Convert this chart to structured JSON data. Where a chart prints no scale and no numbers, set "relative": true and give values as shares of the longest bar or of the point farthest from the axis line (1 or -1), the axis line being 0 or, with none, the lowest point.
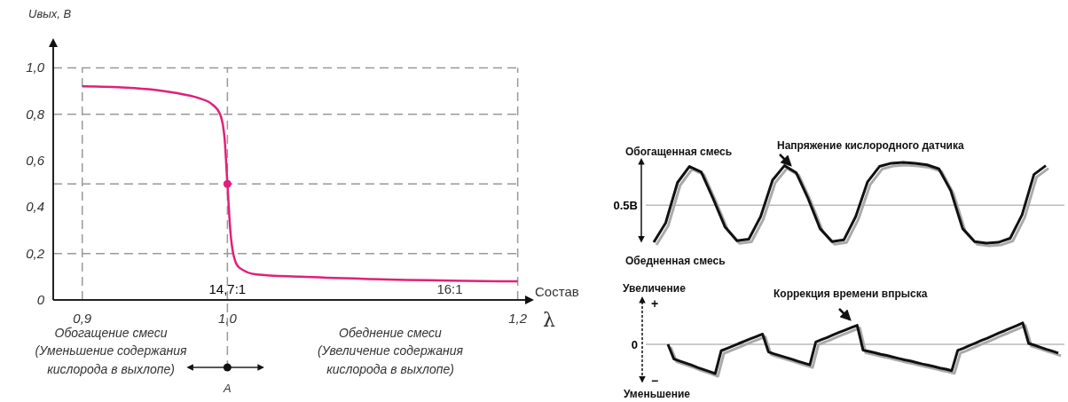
{
  "chart_data": [
    {
      "type": "line",
      "xlabel": "λ",
      "ylabel": "Uвых, В",
      "xlim": [
        0.88,
        1.21
      ],
      "ylim": [
        0,
        1.12
      ],
      "xticks": [
        {
          "value": 0.9,
          "label": "0,9"
        },
        {
          "value": 1.0,
          "label": "1,0"
        },
        {
          "value": 1.2,
          "label": "1,2"
        }
      ],
      "yticks": [
        0,
        {
          "value": 0.2,
          "label": "0,2"
        },
        {
          "value": 0.4,
          "label": "0,4"
        },
        {
          "value": 0.6,
          "label": "0,6"
        },
        {
          "value": 0.8,
          "label": "0,8"
        },
        {
          "value": 1.0,
          "label": "1,0"
        }
      ],
      "series": [
        {
          "color": "#e0207a",
          "x": [
            0.9,
            0.93,
            0.95,
            0.97,
            0.98,
            0.99,
            0.995,
            0.998,
            1.0,
            1.002,
            1.004,
            1.008,
            1.02,
            1.05,
            1.1,
            1.2
          ],
          "values": [
            0.92,
            0.915,
            0.905,
            0.885,
            0.87,
            0.84,
            0.8,
            0.7,
            0.5,
            0.3,
            0.2,
            0.14,
            0.11,
            0.1,
            0.09,
            0.08
          ]
        },
        {
          "type": "scatter",
          "color": "#e0207a",
          "marker": "circle",
          "x": [
            1.0
          ],
          "values": [
            0.5
          ]
        }
      ],
      "ref_lines": [
        {
          "axis": "y",
          "value": 1.0,
          "color": "#999999",
          "line_style": "dashed"
        },
        {
          "axis": "y",
          "value": 0.8,
          "color": "#999999",
          "line_style": "dashed"
        },
        {
          "axis": "y",
          "value": 0.5,
          "color": "#999999",
          "line_style": "dashed"
        },
        {
          "axis": "y",
          "value": 0.2,
          "color": "#999999",
          "line_style": "dashed"
        },
        {
          "axis": "x",
          "value": 0.9,
          "color": "#999999",
          "line_style": "dashed"
        },
        {
          "axis": "x",
          "value": 1.0,
          "color": "#999999",
          "line_style": "dashed"
        },
        {
          "axis": "x",
          "value": 1.2,
          "color": "#999999",
          "line_style": "dashed"
        }
      ],
      "annotations": [
        {
          "text": "14,7:1",
          "x": 1.0,
          "y": 0
        },
        "16:1",
        "Состав",
        "Обогащение смеси\n(Уменьшение содержания\nкислорода в выхлопе)",
        "Обеднение смеси\n(Увеличение содержания\nкислорода в выхлопе)",
        "A"
      ]
    },
    {
      "type": "line",
      "relative": true,
      "categories": [
        null,
        null,
        null,
        null,
        null,
        null,
        null,
        null,
        null,
        null,
        null,
        null,
        null,
        null,
        null,
        null,
        null,
        null,
        null,
        null,
        null,
        null,
        null,
        null,
        null,
        null,
        null,
        null,
        null,
        null,
        null,
        null,
        null,
        null
      ],
      "series": [
        {
          "color": "#111111",
          "values": [
            0.01,
            0.25,
            0.75,
            0.95,
            0.88,
            0.55,
            0.2,
            0.03,
            0.05,
            0.33,
            0.78,
            0.96,
            0.87,
            0.55,
            0.18,
            0.02,
            0.04,
            0.33,
            0.76,
            0.95,
            0.99,
            1.0,
            0.99,
            0.97,
            0.92,
            0.65,
            0.18,
            0.02,
            0,
            0.01,
            0.06,
            0.35,
            0.85,
            0.96
          ]
        }
      ],
      "ref_lines": [
        {
          "axis": "y",
          "value": 0.47,
          "label": "0.5В",
          "color": "#bbbbbb"
        }
      ],
      "annotations": [
        "Обогащенная смесь",
        "Обедненная смесь",
        "Напряжение кислородного датчика"
      ]
    },
    {
      "type": "line",
      "relative": true,
      "categories": [
        null,
        null,
        null,
        null,
        null,
        null,
        null,
        null,
        null,
        null,
        null,
        null,
        null,
        null,
        null,
        null,
        null,
        null,
        null,
        null,
        null,
        null,
        null,
        null,
        null,
        null,
        null,
        null,
        null,
        null,
        null,
        null,
        null,
        null,
        null,
        null,
        null,
        null,
        null,
        null,
        null,
        null,
        null,
        null,
        null,
        null,
        null,
        null,
        null,
        null,
        null,
        null,
        null,
        null,
        null,
        null,
        null,
        null,
        null,
        null,
        null,
        null,
        null,
        null,
        null,
        null,
        null
      ],
      "series": [
        {
          "color": "#111111",
          "values": [
            0,
            -0.5,
            -0.57,
            -0.64,
            -0.71,
            -0.79,
            -0.86,
            -0.93,
            -1,
            -0.22,
            -0.14,
            -0.06,
            0.03,
            0.11,
            0.19,
            0.27,
            0.35,
            -0.26,
            -0.33,
            -0.39,
            -0.45,
            -0.51,
            -0.58,
            -0.64,
            -0.7,
            0.08,
            0.16,
            0.24,
            0.33,
            0.41,
            0.49,
            0.57,
            0.65,
            -0.2,
            -0.24,
            -0.29,
            -0.34,
            -0.38,
            -0.43,
            -0.48,
            -0.53,
            -0.57,
            -0.62,
            -0.67,
            -0.71,
            -0.76,
            -0.81,
            -0.85,
            -0.9,
            -0.21,
            -0.13,
            -0.04,
            0.04,
            0.13,
            0.21,
            0.3,
            0.39,
            0.47,
            0.56,
            0.64,
            0.73,
            0.03,
            -0.03,
            -0.1,
            -0.17,
            -0.23,
            -0.3
          ]
        }
      ],
      "ref_lines": [
        {
          "axis": "y",
          "value": 0,
          "label": "0",
          "color": "#bbbbbb"
        }
      ],
      "annotations": [
        "Увеличение",
        "+",
        "−",
        "Уменьшение",
        "Коррекция времени впрыска"
      ]
    }
  ]
}
